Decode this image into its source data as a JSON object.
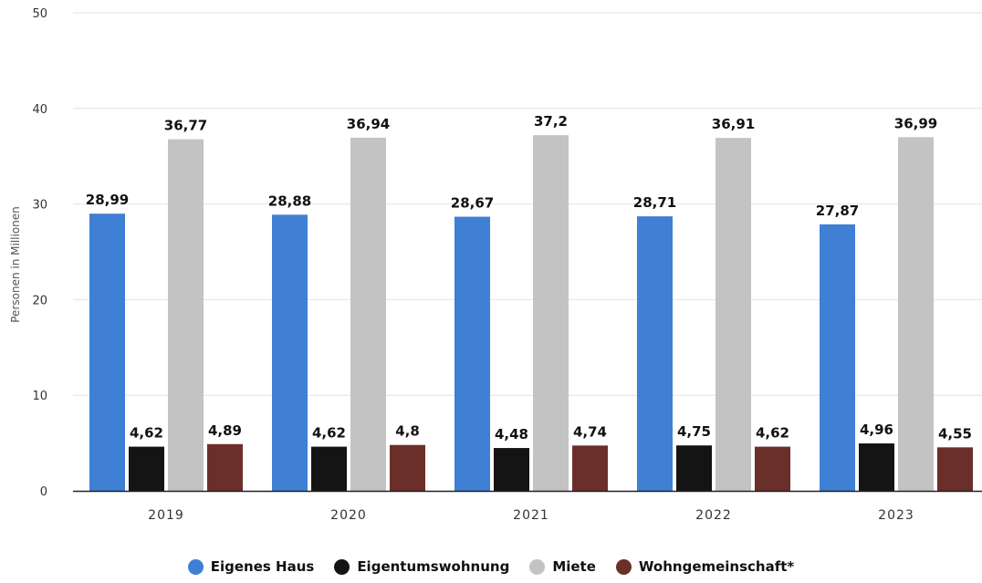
{
  "chart_data": {
    "type": "bar",
    "title": "",
    "xlabel": "",
    "ylabel": "Personen in Millionen",
    "ylim": [
      0,
      50
    ],
    "yticks": [
      "0",
      "10",
      "20",
      "30",
      "40",
      "50"
    ],
    "categories": [
      "2019",
      "2020",
      "2021",
      "2022",
      "2023"
    ],
    "grid": true,
    "legend_position": "bottom",
    "series": [
      {
        "name": "Eigenes Haus",
        "color": "#3f7fd4",
        "values": [
          28.99,
          28.88,
          28.67,
          28.71,
          27.87
        ],
        "labels": [
          "28,99",
          "28,88",
          "28,67",
          "28,71",
          "27,87"
        ]
      },
      {
        "name": "Eigentumswohnung",
        "color": "#141414",
        "values": [
          4.62,
          4.62,
          4.48,
          4.75,
          4.96
        ],
        "labels": [
          "4,62",
          "4,62",
          "4,48",
          "4,75",
          "4,96"
        ]
      },
      {
        "name": "Miete",
        "color": "#c3c3c3",
        "values": [
          36.77,
          36.94,
          37.2,
          36.91,
          36.99
        ],
        "labels": [
          "36,77",
          "36,94",
          "37,2",
          "36,91",
          "36,99"
        ]
      },
      {
        "name": "Wohngemeinschaft*",
        "color": "#6b2f2a",
        "values": [
          4.89,
          4.8,
          4.74,
          4.62,
          4.55
        ],
        "labels": [
          "4,89",
          "4,8",
          "4,74",
          "4,62",
          "4,55"
        ]
      }
    ]
  }
}
